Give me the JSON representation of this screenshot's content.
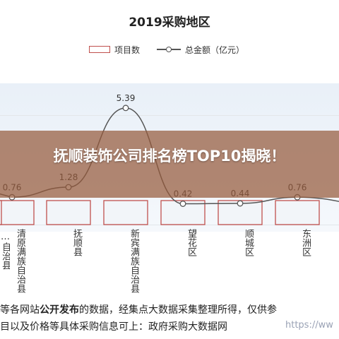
{
  "banner": {
    "title": "抚顺装饰公司排名榜TOP10揭晓！"
  },
  "chart_data": {
    "type": "bar",
    "title": "2019采购地区",
    "legend": [
      "项目数",
      "总金额（亿元）"
    ],
    "categories": [
      "清原满族自治县",
      "抚顺县",
      "新宾满族自治县",
      "望花区",
      "顺城区",
      "东洲区"
    ],
    "partial_categories": [
      "…自治县"
    ],
    "series": [
      {
        "name": "总金额（亿元）",
        "type": "line",
        "values": [
          0.76,
          1.28,
          5.39,
          0.42,
          0.44,
          0.76
        ]
      }
    ],
    "data_labels": [
      "0.76",
      "1.28",
      "5.39",
      "0.42",
      "0.44",
      "0.76"
    ],
    "grid": true,
    "legend_position": "top"
  },
  "source_text": {
    "line1": [
      "等各网站",
      "公开发布",
      "的数据，经集点大数据采集整理所得，仅供参"
    ],
    "line2": "目以及价格等具体采购信息可上：政府采购大数据网"
  },
  "watermark": "https://ww",
  "colors": {
    "bar_outline": "#c0504d",
    "line": "#555555",
    "banner": "#965a3c"
  }
}
